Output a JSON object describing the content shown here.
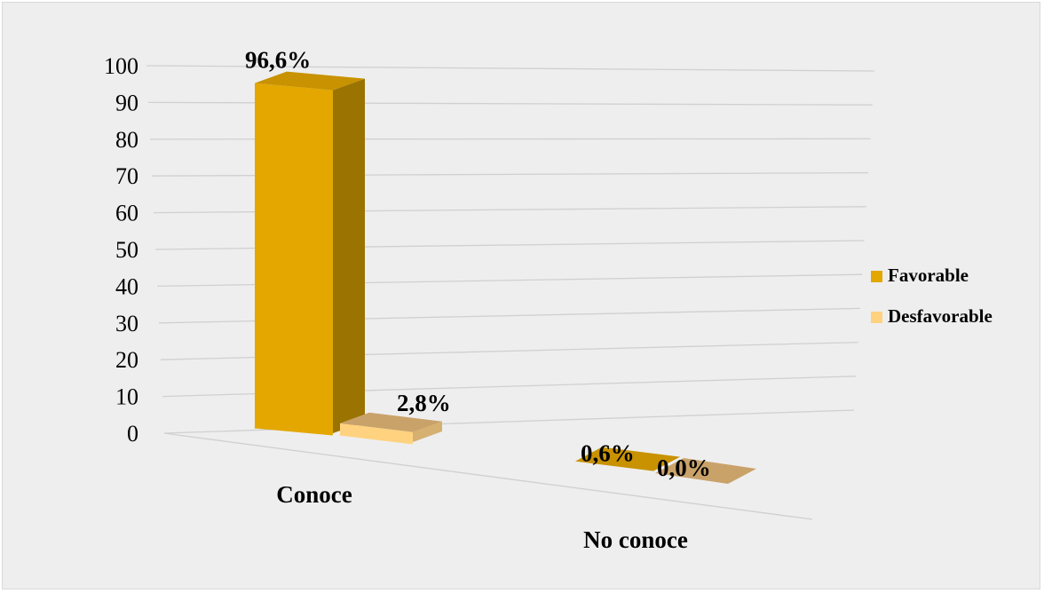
{
  "chart_data": {
    "type": "bar",
    "categories": [
      "Conoce",
      "No conoce"
    ],
    "series": [
      {
        "name": "Favorable",
        "values": [
          96.6,
          0.6
        ],
        "labels": [
          "96,6%",
          "0,6%"
        ]
      },
      {
        "name": "Desfavorable",
        "values": [
          2.8,
          0.0
        ],
        "labels": [
          "2,8%",
          "0,0%"
        ]
      }
    ],
    "y_ticks": [
      "0",
      "10",
      "20",
      "30",
      "40",
      "50",
      "60",
      "70",
      "80",
      "90",
      "100"
    ],
    "ylim": [
      0,
      100
    ],
    "grid": true,
    "legend_position": "right",
    "colors": {
      "background": "#eeeeee",
      "favorable_front": "#e3a700",
      "favorable_side": "#9a7300",
      "favorable_top": "#c89200",
      "desfavorable_front": "#ffd280",
      "desfavorable_side": "#d5b070",
      "desfavorable_top": "#c9a26a",
      "gridline": "#d0d0d0"
    }
  }
}
